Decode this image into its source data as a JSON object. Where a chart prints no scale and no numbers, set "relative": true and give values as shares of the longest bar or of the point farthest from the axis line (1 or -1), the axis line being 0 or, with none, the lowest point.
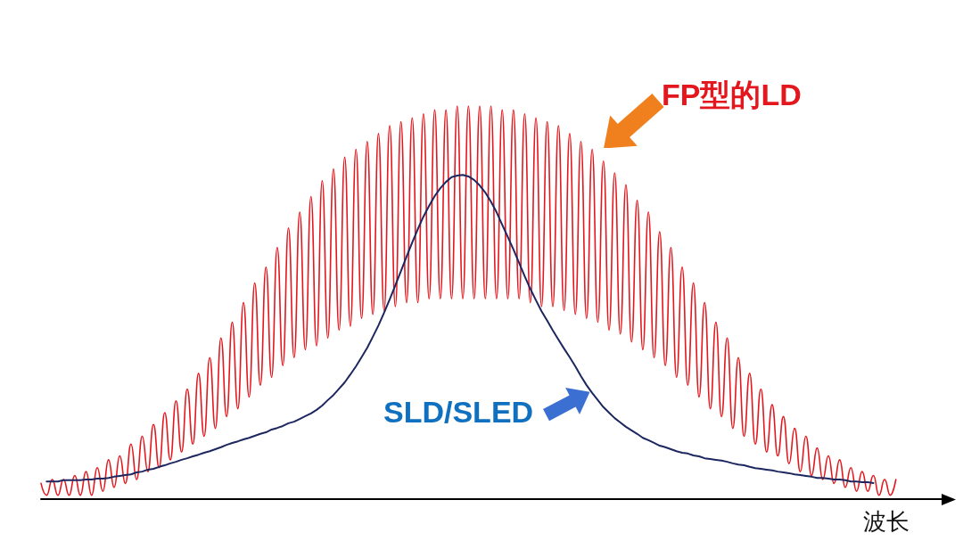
{
  "chart_data": {
    "type": "line",
    "relative": true,
    "xlabel": "波长",
    "marker": "none",
    "categories": [
      null,
      null,
      null,
      null,
      null,
      null,
      null,
      null,
      null,
      null,
      null,
      null,
      null,
      null,
      null,
      null,
      null,
      null,
      null,
      null,
      null,
      null,
      null,
      null,
      null,
      null,
      null,
      null,
      null,
      null,
      null,
      null,
      null,
      null,
      null,
      null,
      null,
      null,
      null,
      null,
      null,
      null,
      null,
      null,
      null,
      null,
      null,
      null,
      null,
      null,
      null,
      null,
      null,
      null,
      null,
      null,
      null,
      null,
      null,
      null,
      null,
      null,
      null,
      null,
      null,
      null,
      null,
      null,
      null,
      null,
      null,
      null,
      null,
      null,
      null,
      null,
      null,
      null,
      null,
      null,
      null,
      null,
      null,
      null,
      null,
      null,
      null,
      null,
      null,
      null,
      null,
      null,
      null,
      null,
      null,
      null,
      null,
      null,
      null,
      null,
      null,
      null,
      null,
      null,
      null,
      null,
      null,
      null,
      null,
      null,
      null,
      null,
      null,
      null,
      null,
      null,
      null,
      null,
      null,
      null,
      null,
      null,
      null,
      null,
      null,
      null,
      null,
      null,
      null,
      null,
      null,
      null,
      null,
      null,
      null,
      null,
      null,
      null,
      null,
      null,
      null,
      null,
      null,
      null,
      null,
      null,
      null,
      null,
      null,
      null,
      null,
      null,
      null
    ],
    "series": [
      {
        "name": "FP型的LD",
        "color": "#e3171d",
        "values": [
          0.04,
          0.01,
          0.05,
          0.01,
          0.05,
          0.01,
          0.06,
          0.01,
          0.07,
          0.01,
          0.08,
          0.02,
          0.1,
          0.03,
          0.11,
          0.04,
          0.14,
          0.05,
          0.16,
          0.07,
          0.19,
          0.08,
          0.22,
          0.1,
          0.25,
          0.12,
          0.28,
          0.14,
          0.32,
          0.16,
          0.36,
          0.18,
          0.41,
          0.21,
          0.45,
          0.23,
          0.5,
          0.26,
          0.55,
          0.29,
          0.59,
          0.31,
          0.64,
          0.34,
          0.69,
          0.36,
          0.73,
          0.38,
          0.77,
          0.39,
          0.81,
          0.41,
          0.84,
          0.43,
          0.87,
          0.44,
          0.89,
          0.46,
          0.91,
          0.47,
          0.93,
          0.48,
          0.95,
          0.49,
          0.96,
          0.5,
          0.97,
          0.5,
          0.98,
          0.51,
          0.99,
          0.51,
          0.99,
          0.51,
          1,
          0.51,
          1,
          0.51,
          1,
          0.51,
          1,
          0.51,
          0.99,
          0.51,
          0.99,
          0.51,
          0.98,
          0.5,
          0.97,
          0.49,
          0.96,
          0.49,
          0.95,
          0.48,
          0.93,
          0.47,
          0.91,
          0.46,
          0.89,
          0.45,
          0.86,
          0.43,
          0.83,
          0.42,
          0.8,
          0.4,
          0.76,
          0.38,
          0.73,
          0.36,
          0.68,
          0.34,
          0.64,
          0.31,
          0.59,
          0.29,
          0.55,
          0.26,
          0.5,
          0.23,
          0.45,
          0.21,
          0.41,
          0.18,
          0.36,
          0.16,
          0.32,
          0.14,
          0.28,
          0.12,
          0.24,
          0.11,
          0.21,
          0.09,
          0.18,
          0.07,
          0.16,
          0.06,
          0.13,
          0.05,
          0.11,
          0.04,
          0.1,
          0.03,
          0.08,
          0.02,
          0.07,
          0.02,
          0.06,
          0.01,
          0.05,
          0.01,
          0.05
        ]
      },
      {
        "name": "SLD/SLED",
        "color": "#1c2760",
        "values": [
          null,
          0.045,
          0.045,
          0.045,
          0.048,
          0.048,
          0.048,
          0.048,
          0.05,
          0.05,
          0.052,
          0.052,
          0.054,
          0.057,
          0.059,
          0.061,
          0.063,
          0.068,
          0.07,
          0.075,
          0.077,
          0.082,
          0.086,
          0.091,
          0.095,
          0.1,
          0.104,
          0.109,
          0.113,
          0.118,
          0.122,
          0.127,
          0.132,
          0.138,
          0.143,
          0.147,
          0.152,
          0.156,
          0.161,
          0.166,
          0.17,
          0.177,
          0.181,
          0.186,
          0.193,
          0.197,
          0.204,
          0.211,
          0.218,
          0.227,
          0.238,
          0.252,
          0.265,
          0.281,
          0.297,
          0.317,
          0.338,
          0.361,
          0.385,
          0.413,
          0.442,
          0.474,
          0.508,
          0.544,
          0.58,
          0.617,
          0.653,
          0.687,
          0.719,
          0.746,
          0.771,
          0.791,
          0.807,
          0.819,
          0.823,
          0.825,
          0.821,
          0.812,
          0.798,
          0.78,
          0.757,
          0.73,
          0.698,
          0.667,
          0.635,
          0.601,
          0.567,
          0.535,
          0.506,
          0.478,
          0.454,
          0.429,
          0.406,
          0.383,
          0.361,
          0.338,
          0.313,
          0.29,
          0.27,
          0.252,
          0.234,
          0.22,
          0.206,
          0.195,
          0.184,
          0.175,
          0.166,
          0.156,
          0.15,
          0.143,
          0.136,
          0.132,
          0.127,
          0.122,
          0.118,
          0.116,
          0.111,
          0.109,
          0.104,
          0.102,
          0.1,
          0.098,
          0.095,
          0.091,
          0.088,
          0.086,
          0.082,
          0.079,
          0.077,
          0.075,
          0.073,
          0.07,
          0.068,
          0.066,
          0.063,
          0.061,
          0.059,
          0.057,
          0.054,
          0.054,
          0.052,
          0.05,
          0.05,
          0.048,
          0.045,
          0.045,
          0.043,
          0.043,
          0.041,
          null,
          null,
          null,
          null
        ]
      }
    ]
  }
}
